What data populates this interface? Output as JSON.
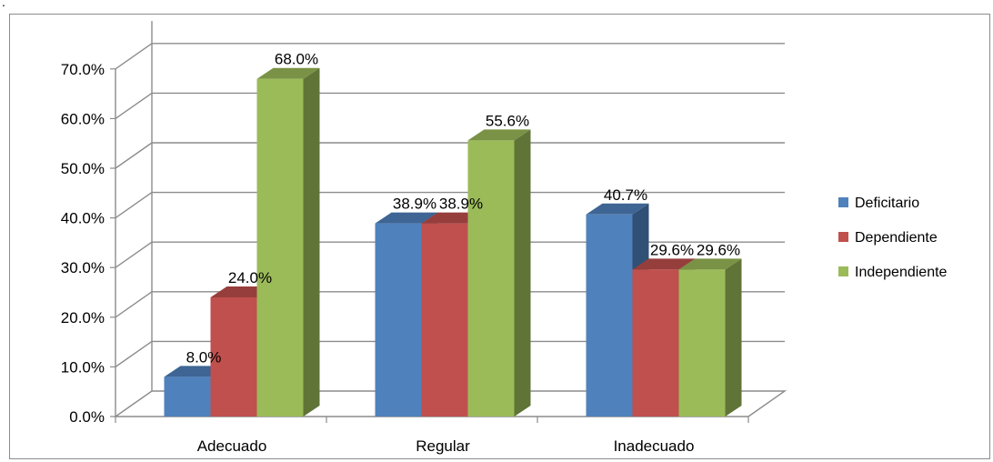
{
  "page_mark": ".",
  "chart_data": {
    "type": "bar",
    "style": "3d-clustered-column",
    "categories": [
      "Adecuado",
      "Regular",
      "Inadecuado"
    ],
    "series": [
      {
        "name": "Deficitario",
        "values": [
          8.0,
          38.9,
          40.7
        ],
        "labels": [
          "8.0%",
          "38.9%",
          "40.7%"
        ],
        "color": "#4F81BD"
      },
      {
        "name": "Dependiente",
        "values": [
          24.0,
          38.9,
          29.6
        ],
        "labels": [
          "24.0%",
          "38.9%",
          "29.6%"
        ],
        "color": "#C0504D"
      },
      {
        "name": "Independiente",
        "values": [
          68.0,
          55.6,
          29.6
        ],
        "labels": [
          "68.0%",
          "55.6%",
          "29.6%"
        ],
        "color": "#9BBB59"
      }
    ],
    "y_ticks": [
      "0.0%",
      "10.0%",
      "20.0%",
      "30.0%",
      "40.0%",
      "50.0%",
      "60.0%",
      "70.0%"
    ],
    "ylim": [
      0,
      70
    ],
    "title": "",
    "xlabel": "",
    "ylabel": "",
    "grid": true,
    "legend_position": "right"
  }
}
